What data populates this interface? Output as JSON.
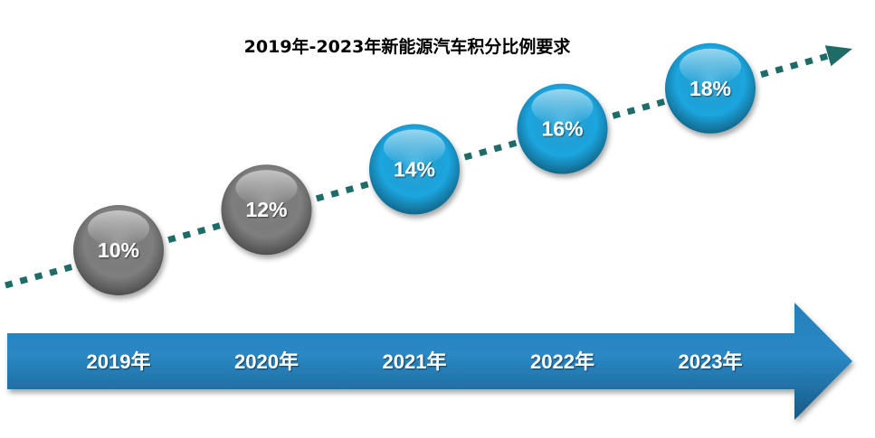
{
  "chart_data": {
    "type": "line",
    "title": "2019年-2023年新能源汽车积分比例要求",
    "categories": [
      "2019年",
      "2020年",
      "2021年",
      "2022年",
      "2023年"
    ],
    "values": [
      10,
      12,
      14,
      16,
      18
    ],
    "value_labels": [
      "10%",
      "12%",
      "14%",
      "16%",
      "18%"
    ],
    "point_colors": [
      "#7f7f7f",
      "#7f7f7f",
      "#1ea6df",
      "#1ea6df",
      "#1ea6df"
    ],
    "xlabel": "",
    "ylabel": "",
    "grid": false,
    "legend": "none"
  },
  "colors": {
    "trend_line": "#1f6b68",
    "timeline_arrow_top": "#2580ba",
    "timeline_arrow_bottom": "#175985",
    "label_text": "#ffffff",
    "title_text": "#000000"
  },
  "icons": {
    "trend": "dotted-arrow-up-right-icon",
    "timeline": "block-arrow-right-icon"
  }
}
